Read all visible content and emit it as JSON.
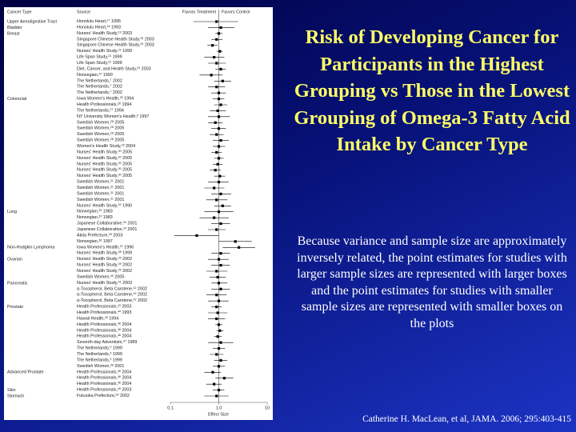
{
  "chart_data": {
    "type": "forest",
    "title": "Risk of Developing Cancer for Participants in the Highest Grouping vs Those in the Lowest Grouping of Omega-3 Fatty Acid Intake by Cancer Type",
    "description": "Because variance and sample size are approximately inversely related, the point estimates for studies with larger sample sizes are represented with larger boxes and the point estimates for studies with smaller sample sizes are represented with smaller boxes on the plots",
    "citation": "Catherine H. MacLean, et al, JAMA. 2006; 295:403-415",
    "column_headers": {
      "group": "Cancer Type",
      "source": "Source",
      "left": "Favors Treatment",
      "right": "Favors Control"
    },
    "xlabel": "Effect Size",
    "xlim": [
      0.1,
      10
    ],
    "log_x": true,
    "xticks": [
      0.1,
      {
        "value": 1,
        "label": "1.0"
      },
      10
    ],
    "color": "#000000",
    "groups": [
      {
        "name": "Upper Aerodigestive Tract",
        "rows": [
          {
            "source": "Honolulu Heart,",
            "ref": "17",
            "year": "1995",
            "estimate": 0.9,
            "ci": [
              0.3,
              2.5
            ]
          }
        ]
      },
      {
        "name": "Bladder",
        "rows": [
          {
            "source": "Honolulu Heart,",
            "ref": "18",
            "year": "1993",
            "estimate": 1.1,
            "ci": [
              0.6,
              2.1
            ]
          }
        ]
      },
      {
        "name": "Breast",
        "rows": [
          {
            "source": "Nurses' Health Study,",
            "ref": "19",
            "year": "2003",
            "estimate": 1.0,
            "ci": [
              0.85,
              1.2
            ]
          },
          {
            "source": "Singapore Chinese Health Study,",
            "ref": "20",
            "year": "2003",
            "estimate": 0.9,
            "ci": [
              0.7,
              1.2
            ]
          },
          {
            "source": "Singapore Chinese Health Study,",
            "ref": "20",
            "year": "2003",
            "estimate": 0.74,
            "ci": [
              0.58,
              0.94
            ]
          },
          {
            "source": "Nurses' Health Study,",
            "ref": "21",
            "year": "1999",
            "estimate": 1.05,
            "ci": [
              0.9,
              1.2
            ]
          },
          {
            "source": "Life Span Study,",
            "ref": "22",
            "year": "1999",
            "estimate": 0.8,
            "ci": [
              0.5,
              1.3
            ]
          },
          {
            "source": "Life Span Study,",
            "ref": "22",
            "year": "1999",
            "estimate": 0.9,
            "ci": [
              0.6,
              1.4
            ]
          },
          {
            "source": "Diet, Cancer, and Health Study,",
            "ref": "23",
            "year": "2003",
            "estimate": 1.1,
            "ci": [
              0.85,
              1.4
            ]
          },
          {
            "source": "Norwegian,",
            "ref": "24",
            "year": "1990",
            "estimate": 0.7,
            "ci": [
              0.4,
              1.2
            ]
          },
          {
            "source": "The Netherlands,",
            "ref": "7",
            "year": "2002",
            "estimate": 1.2,
            "ci": [
              0.8,
              1.8
            ]
          },
          {
            "source": "The Netherlands,",
            "ref": "7",
            "year": "2002",
            "estimate": 0.9,
            "ci": [
              0.6,
              1.35
            ]
          },
          {
            "source": "The Netherlands,",
            "ref": "7",
            "year": "2002",
            "estimate": 1.0,
            "ci": [
              0.7,
              1.4
            ]
          }
        ]
      },
      {
        "name": "Colorectal",
        "rows": [
          {
            "source": "Iowa Women's Health,",
            "ref": "25",
            "year": "1994",
            "estimate": 1.0,
            "ci": [
              0.75,
              1.3
            ]
          },
          {
            "source": "Health Professionals,",
            "ref": "26",
            "year": "1994",
            "estimate": 1.1,
            "ci": [
              0.8,
              1.5
            ]
          },
          {
            "source": "The Netherlands,",
            "ref": "27",
            "year": "1994",
            "estimate": 0.95,
            "ci": [
              0.65,
              1.4
            ]
          },
          {
            "source": "NY University Women's Health,",
            "ref": "8",
            "year": "1997",
            "estimate": 1.0,
            "ci": [
              0.6,
              1.7
            ]
          },
          {
            "source": "Swedish Women,",
            "ref": "28",
            "year": "2005",
            "estimate": 0.85,
            "ci": [
              0.6,
              1.2
            ]
          },
          {
            "source": "Swedish Women,",
            "ref": "28",
            "year": "2005",
            "estimate": 1.0,
            "ci": [
              0.7,
              1.4
            ]
          },
          {
            "source": "Swedish Women,",
            "ref": "28",
            "year": "2005",
            "estimate": 0.9,
            "ci": [
              0.65,
              1.25
            ]
          },
          {
            "source": "Swedish Women,",
            "ref": "28",
            "year": "2005",
            "estimate": 1.1,
            "ci": [
              0.75,
              1.6
            ]
          },
          {
            "source": "Women's Health Study,",
            "ref": "29",
            "year": "2004",
            "estimate": 1.0,
            "ci": [
              0.75,
              1.35
            ]
          },
          {
            "source": "Nurses' Health Study,",
            "ref": "30",
            "year": "2005",
            "estimate": 0.9,
            "ci": [
              0.7,
              1.15
            ]
          },
          {
            "source": "Nurses' Health Study,",
            "ref": "30",
            "year": "2005",
            "estimate": 1.0,
            "ci": [
              0.8,
              1.25
            ]
          },
          {
            "source": "Nurses' Health Study,",
            "ref": "30",
            "year": "2005",
            "estimate": 0.95,
            "ci": [
              0.75,
              1.2
            ]
          },
          {
            "source": "Nurses' Health Study,",
            "ref": "30",
            "year": "2005",
            "estimate": 0.85,
            "ci": [
              0.65,
              1.1
            ]
          },
          {
            "source": "Nurses' Health Study,",
            "ref": "30",
            "year": "2005",
            "estimate": 1.05,
            "ci": [
              0.8,
              1.35
            ]
          },
          {
            "source": "Swedish Women,",
            "ref": "31",
            "year": "2001",
            "estimate": 1.0,
            "ci": [
              0.6,
              1.6
            ]
          },
          {
            "source": "Swedish Women,",
            "ref": "31",
            "year": "2001",
            "estimate": 0.8,
            "ci": [
              0.5,
              1.3
            ]
          },
          {
            "source": "Swedish Women,",
            "ref": "31",
            "year": "2001",
            "estimate": 1.1,
            "ci": [
              0.7,
              1.8
            ]
          },
          {
            "source": "Swedish Women,",
            "ref": "31",
            "year": "2001",
            "estimate": 0.9,
            "ci": [
              0.55,
              1.5
            ]
          },
          {
            "source": "Nurses' Health Study,",
            "ref": "32",
            "year": "1990",
            "estimate": 1.2,
            "ci": [
              0.8,
              1.8
            ]
          }
        ]
      },
      {
        "name": "Lung",
        "rows": [
          {
            "source": "Norwegian,",
            "ref": "33",
            "year": "1983",
            "estimate": 1.0,
            "ci": [
              0.5,
              2.0
            ]
          },
          {
            "source": "Norwegian,",
            "ref": "33",
            "year": "1983",
            "estimate": 0.8,
            "ci": [
              0.4,
              1.6
            ]
          },
          {
            "source": "Japanese Collaborative,",
            "ref": "34",
            "year": "2001",
            "estimate": 1.1,
            "ci": [
              0.7,
              1.7
            ]
          },
          {
            "source": "Japanese Collaborative,",
            "ref": "34",
            "year": "2001",
            "estimate": 0.9,
            "ci": [
              0.6,
              1.4
            ]
          },
          {
            "source": "Akita Prefecture,",
            "ref": "35",
            "year": "2003",
            "estimate": 0.35,
            "ci": [
              0.12,
              1.0
            ]
          },
          {
            "source": "Norwegian,",
            "ref": "36",
            "year": "1997",
            "estimate": 2.2,
            "ci": [
              1.0,
              4.8
            ]
          }
        ]
      },
      {
        "name": "Non-Hodgkin Lymphoma",
        "rows": [
          {
            "source": "Iowa Women's Health,",
            "ref": "37",
            "year": "1996",
            "estimate": 2.6,
            "ci": [
              1.2,
              5.6
            ]
          },
          {
            "source": "Nurses' Health Study,",
            "ref": "38",
            "year": "1999",
            "estimate": 1.1,
            "ci": [
              0.7,
              1.7
            ]
          }
        ]
      },
      {
        "name": "Ovarian",
        "rows": [
          {
            "source": "Nurses' Health Study,",
            "ref": "39",
            "year": "2002",
            "estimate": 1.0,
            "ci": [
              0.6,
              1.6
            ]
          },
          {
            "source": "Nurses' Health Study,",
            "ref": "39",
            "year": "2002",
            "estimate": 1.1,
            "ci": [
              0.7,
              1.7
            ]
          },
          {
            "source": "Nurses' Health Study,",
            "ref": "39",
            "year": "2002",
            "estimate": 0.9,
            "ci": [
              0.55,
              1.5
            ]
          },
          {
            "source": "Swedish Women,",
            "ref": "40",
            "year": "2005",
            "estimate": 0.95,
            "ci": [
              0.65,
              1.4
            ]
          }
        ]
      },
      {
        "name": "Pancreatic",
        "rows": [
          {
            "source": "Nurses' Health Study,",
            "ref": "41",
            "year": "2003",
            "estimate": 1.0,
            "ci": [
              0.7,
              1.5
            ]
          },
          {
            "source": "α-Tocopherol, Beta Carotene,",
            "ref": "42",
            "year": "2002",
            "estimate": 1.1,
            "ci": [
              0.7,
              1.7
            ]
          },
          {
            "source": "α-Tocopherol, Beta Carotene,",
            "ref": "42",
            "year": "2002",
            "estimate": 0.9,
            "ci": [
              0.55,
              1.45
            ]
          },
          {
            "source": "α-Tocopherol, Beta Carotene,",
            "ref": "42",
            "year": "2002",
            "estimate": 1.0,
            "ci": [
              0.6,
              1.6
            ]
          }
        ]
      },
      {
        "name": "Prostate",
        "rows": [
          {
            "source": "Health Professionals,",
            "ref": "43",
            "year": "2003",
            "estimate": 0.9,
            "ci": [
              0.7,
              1.15
            ]
          },
          {
            "source": "Health Professionals,",
            "ref": "44",
            "year": "1993",
            "estimate": 0.95,
            "ci": [
              0.6,
              1.5
            ]
          },
          {
            "source": "Hawaii Health,",
            "ref": "45",
            "year": "1994",
            "estimate": 0.9,
            "ci": [
              0.6,
              1.35
            ]
          },
          {
            "source": "Health Professionals,",
            "ref": "46",
            "year": "2004",
            "estimate": 1.0,
            "ci": [
              0.85,
              1.2
            ]
          },
          {
            "source": "Health Professionals,",
            "ref": "46",
            "year": "2004",
            "estimate": 1.05,
            "ci": [
              0.9,
              1.25
            ]
          },
          {
            "source": "Health Professionals,",
            "ref": "46",
            "year": "2004",
            "estimate": 0.95,
            "ci": [
              0.8,
              1.15
            ]
          },
          {
            "source": "Seventh-day Adventists,",
            "ref": "47",
            "year": "1989",
            "estimate": 1.1,
            "ci": [
              0.6,
              2.0
            ]
          },
          {
            "source": "The Netherlands,",
            "ref": "9",
            "year": "1999",
            "estimate": 1.0,
            "ci": [
              0.75,
              1.35
            ]
          },
          {
            "source": "The Netherlands,",
            "ref": "9",
            "year": "1999",
            "estimate": 0.9,
            "ci": [
              0.65,
              1.25
            ]
          },
          {
            "source": "The Netherlands,",
            "ref": "9",
            "year": "1999",
            "estimate": 1.1,
            "ci": [
              0.8,
              1.5
            ]
          },
          {
            "source": "Swedish Women,",
            "ref": "48",
            "year": "2001",
            "estimate": 1.0,
            "ci": [
              0.75,
              1.35
            ]
          }
        ]
      },
      {
        "name": "Advanced Prostate",
        "rows": [
          {
            "source": "Health Professionals,",
            "ref": "46",
            "year": "2004",
            "estimate": 0.75,
            "ci": [
              0.5,
              1.1
            ]
          },
          {
            "source": "Health Professionals,",
            "ref": "46",
            "year": "2004",
            "estimate": 1.3,
            "ci": [
              0.85,
              2.0
            ]
          },
          {
            "source": "Health Professionals,",
            "ref": "46",
            "year": "2004",
            "estimate": 0.8,
            "ci": [
              0.55,
              1.15
            ]
          }
        ]
      },
      {
        "name": "Skin",
        "rows": [
          {
            "source": "Health Professionals,",
            "ref": "49",
            "year": "2003",
            "estimate": 1.0,
            "ci": [
              0.75,
              1.3
            ]
          }
        ]
      },
      {
        "name": "Stomach",
        "rows": [
          {
            "source": "Fukuoka Prefecture,",
            "ref": "50",
            "year": "2002",
            "estimate": 0.9,
            "ci": [
              0.5,
              1.6
            ]
          }
        ]
      }
    ]
  }
}
